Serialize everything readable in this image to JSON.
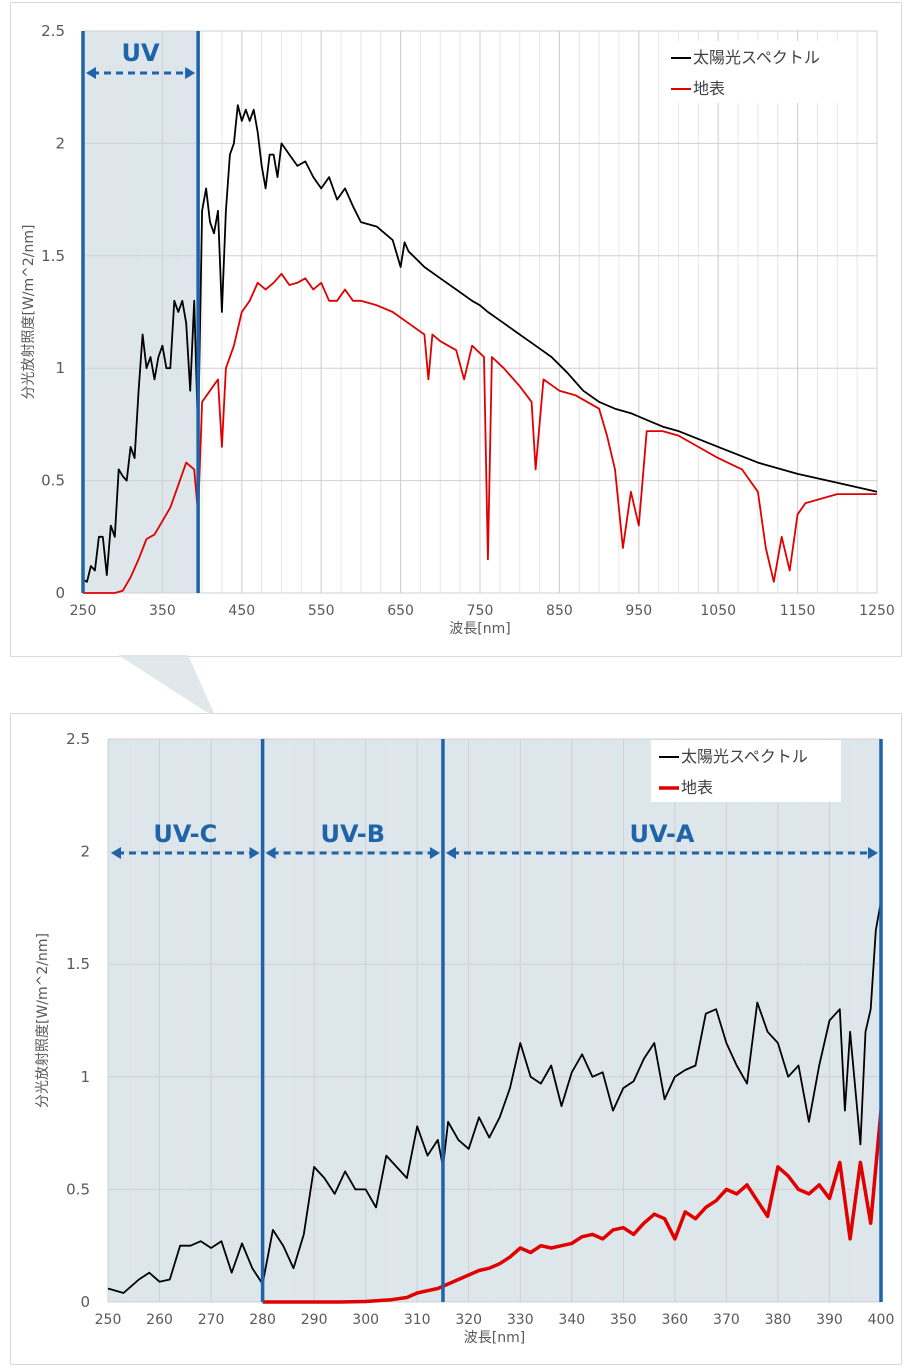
{
  "chart_data": [
    {
      "type": "line",
      "xlabel": "波長[nm]",
      "ylabel": "分光放射照度[W/m^2/nm]",
      "xlim": [
        250,
        1250
      ],
      "ylim": [
        0,
        2.5
      ],
      "x_ticks": [
        250,
        350,
        450,
        550,
        650,
        750,
        850,
        950,
        1050,
        1150,
        1250
      ],
      "y_ticks": [
        0,
        0.5,
        1,
        1.5,
        2,
        2.5
      ],
      "y_tick_labels": [
        "0",
        "0.5",
        "1",
        "1.5",
        "2",
        "2.5"
      ],
      "grid": true,
      "legend_position": "top-right",
      "region": {
        "label": "UV",
        "x_from": 250,
        "x_to": 395,
        "color": "#dde6ea",
        "line_color": "#1f63a8"
      },
      "series": [
        {
          "name": "太陽光スペクトル",
          "color": "#000000",
          "x": [
            250,
            255,
            260,
            265,
            270,
            275,
            280,
            285,
            290,
            295,
            300,
            305,
            310,
            315,
            320,
            325,
            330,
            335,
            340,
            345,
            350,
            355,
            360,
            365,
            370,
            375,
            380,
            385,
            390,
            395,
            400,
            405,
            410,
            415,
            420,
            425,
            430,
            435,
            440,
            445,
            450,
            455,
            460,
            465,
            470,
            475,
            480,
            485,
            490,
            495,
            500,
            510,
            520,
            530,
            540,
            550,
            560,
            570,
            580,
            590,
            600,
            620,
            640,
            650,
            655,
            660,
            680,
            700,
            720,
            740,
            750,
            760,
            780,
            800,
            820,
            840,
            860,
            880,
            900,
            920,
            940,
            960,
            980,
            1000,
            1050,
            1100,
            1150,
            1200,
            1250
          ],
          "values": [
            0.06,
            0.05,
            0.12,
            0.1,
            0.25,
            0.25,
            0.08,
            0.3,
            0.25,
            0.55,
            0.52,
            0.5,
            0.65,
            0.6,
            0.9,
            1.15,
            1.0,
            1.05,
            0.95,
            1.05,
            1.1,
            1.0,
            1.0,
            1.3,
            1.25,
            1.3,
            1.2,
            0.9,
            1.3,
            0.7,
            1.7,
            1.8,
            1.65,
            1.6,
            1.7,
            1.25,
            1.7,
            1.95,
            2.0,
            2.17,
            2.1,
            2.15,
            2.1,
            2.15,
            2.05,
            1.9,
            1.8,
            1.95,
            1.95,
            1.85,
            2.0,
            1.95,
            1.9,
            1.92,
            1.85,
            1.8,
            1.85,
            1.75,
            1.8,
            1.72,
            1.65,
            1.63,
            1.57,
            1.45,
            1.56,
            1.52,
            1.45,
            1.4,
            1.35,
            1.3,
            1.28,
            1.25,
            1.2,
            1.15,
            1.1,
            1.05,
            0.98,
            0.9,
            0.85,
            0.82,
            0.8,
            0.77,
            0.74,
            0.72,
            0.65,
            0.58,
            0.53,
            0.49,
            0.45
          ]
        },
        {
          "name": "地表",
          "color": "#e00000",
          "x": [
            250,
            280,
            290,
            300,
            310,
            320,
            330,
            340,
            350,
            360,
            370,
            380,
            390,
            395,
            400,
            410,
            420,
            425,
            430,
            440,
            450,
            460,
            470,
            480,
            490,
            500,
            510,
            520,
            530,
            540,
            550,
            560,
            570,
            580,
            590,
            600,
            620,
            640,
            660,
            680,
            685,
            690,
            700,
            720,
            730,
            740,
            755,
            760,
            765,
            780,
            800,
            815,
            820,
            830,
            850,
            870,
            900,
            910,
            920,
            930,
            940,
            950,
            960,
            980,
            1000,
            1050,
            1080,
            1100,
            1110,
            1120,
            1130,
            1140,
            1150,
            1160,
            1180,
            1200,
            1250
          ],
          "values": [
            0.0,
            0.0,
            0.0,
            0.01,
            0.07,
            0.15,
            0.24,
            0.26,
            0.32,
            0.38,
            0.48,
            0.58,
            0.55,
            0.35,
            0.85,
            0.9,
            0.95,
            0.65,
            1.0,
            1.1,
            1.25,
            1.3,
            1.38,
            1.35,
            1.38,
            1.42,
            1.37,
            1.38,
            1.4,
            1.35,
            1.38,
            1.3,
            1.3,
            1.35,
            1.3,
            1.3,
            1.28,
            1.25,
            1.2,
            1.15,
            0.95,
            1.15,
            1.12,
            1.08,
            0.95,
            1.1,
            1.05,
            0.15,
            1.05,
            1.0,
            0.92,
            0.85,
            0.55,
            0.95,
            0.9,
            0.88,
            0.82,
            0.7,
            0.55,
            0.2,
            0.45,
            0.3,
            0.72,
            0.72,
            0.7,
            0.6,
            0.55,
            0.45,
            0.2,
            0.05,
            0.25,
            0.1,
            0.35,
            0.4,
            0.42,
            0.44,
            0.44
          ]
        }
      ]
    },
    {
      "type": "line",
      "xlabel": "波長[nm]",
      "ylabel": "分光放射照度[W/m^2/nm]",
      "xlim": [
        250,
        400
      ],
      "ylim": [
        0,
        2.5
      ],
      "x_ticks": [
        250,
        260,
        270,
        280,
        290,
        300,
        310,
        320,
        330,
        340,
        350,
        360,
        370,
        380,
        390,
        400
      ],
      "y_ticks": [
        0,
        0.5,
        1,
        1.5,
        2,
        2.5
      ],
      "y_tick_labels": [
        "0",
        "0.5",
        "1",
        "1.5",
        "2",
        "2.5"
      ],
      "grid": true,
      "legend_position": "top-right",
      "region": {
        "x_from": 250,
        "x_to": 400,
        "color": "#dde6ea",
        "line_color": "#1f63a8"
      },
      "bands": [
        {
          "label": "UV-C",
          "from": 250,
          "to": 280
        },
        {
          "label": "UV-B",
          "from": 280,
          "to": 315
        },
        {
          "label": "UV-A",
          "from": 315,
          "to": 400
        }
      ],
      "series": [
        {
          "name": "太陽光スペクトル",
          "color": "#000000",
          "x": [
            250,
            253,
            256,
            258,
            260,
            262,
            264,
            266,
            268,
            270,
            272,
            274,
            276,
            278,
            280,
            282,
            284,
            286,
            288,
            290,
            292,
            294,
            296,
            298,
            300,
            302,
            304,
            306,
            308,
            310,
            312,
            314,
            315,
            316,
            318,
            320,
            322,
            324,
            326,
            328,
            330,
            332,
            334,
            336,
            338,
            340,
            342,
            344,
            346,
            348,
            350,
            352,
            354,
            356,
            358,
            360,
            362,
            364,
            366,
            368,
            370,
            372,
            374,
            376,
            378,
            380,
            382,
            384,
            386,
            388,
            390,
            392,
            393,
            394,
            396,
            397,
            398,
            399,
            400
          ],
          "values": [
            0.06,
            0.04,
            0.1,
            0.13,
            0.09,
            0.1,
            0.25,
            0.25,
            0.27,
            0.24,
            0.27,
            0.13,
            0.26,
            0.15,
            0.08,
            0.32,
            0.25,
            0.15,
            0.3,
            0.6,
            0.55,
            0.48,
            0.58,
            0.5,
            0.5,
            0.42,
            0.65,
            0.6,
            0.55,
            0.78,
            0.65,
            0.72,
            0.6,
            0.8,
            0.72,
            0.68,
            0.82,
            0.73,
            0.82,
            0.95,
            1.15,
            1.0,
            0.97,
            1.05,
            0.87,
            1.02,
            1.1,
            1.0,
            1.02,
            0.85,
            0.95,
            0.98,
            1.08,
            1.15,
            0.9,
            1.0,
            1.03,
            1.05,
            1.28,
            1.3,
            1.15,
            1.05,
            0.97,
            1.33,
            1.2,
            1.15,
            1.0,
            1.05,
            0.8,
            1.05,
            1.25,
            1.3,
            0.85,
            1.2,
            0.7,
            1.2,
            1.3,
            1.65,
            1.78
          ]
        },
        {
          "name": "地表",
          "color": "#e00000",
          "x": [
            280,
            285,
            290,
            295,
            300,
            305,
            308,
            310,
            312,
            314,
            316,
            318,
            320,
            322,
            324,
            326,
            328,
            330,
            332,
            334,
            336,
            338,
            340,
            342,
            344,
            346,
            348,
            350,
            352,
            354,
            356,
            358,
            360,
            362,
            364,
            366,
            368,
            370,
            372,
            374,
            376,
            378,
            380,
            382,
            384,
            386,
            388,
            390,
            392,
            394,
            396,
            398,
            400
          ],
          "values": [
            0.0,
            0.0,
            0.0,
            0.0,
            0.002,
            0.01,
            0.02,
            0.04,
            0.05,
            0.06,
            0.08,
            0.1,
            0.12,
            0.14,
            0.15,
            0.17,
            0.2,
            0.24,
            0.22,
            0.25,
            0.24,
            0.25,
            0.26,
            0.29,
            0.3,
            0.28,
            0.32,
            0.33,
            0.3,
            0.35,
            0.39,
            0.37,
            0.28,
            0.4,
            0.37,
            0.42,
            0.45,
            0.5,
            0.48,
            0.52,
            0.45,
            0.38,
            0.6,
            0.56,
            0.5,
            0.48,
            0.52,
            0.46,
            0.62,
            0.28,
            0.62,
            0.35,
            0.85
          ]
        }
      ]
    }
  ]
}
